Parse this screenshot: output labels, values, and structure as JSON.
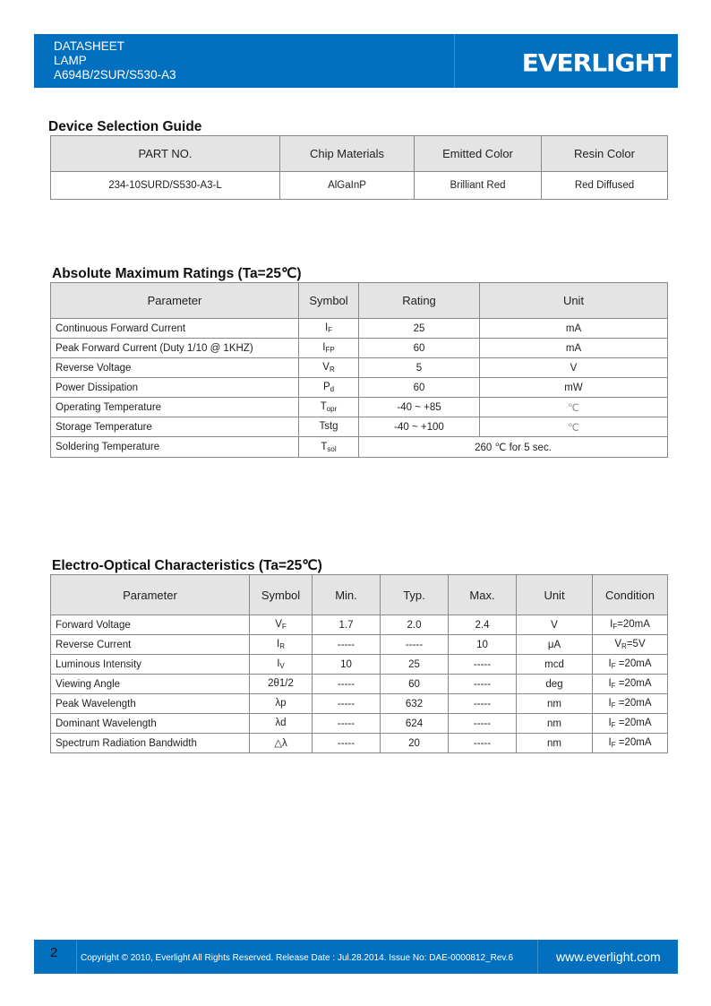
{
  "header": {
    "line1": "DATASHEET",
    "line2": "LAMP",
    "line3": "A694B/2SUR/S530-A3",
    "logo": "EVERLIGHT"
  },
  "selection": {
    "title": "Device Selection Guide",
    "headers": [
      "PART NO.",
      "Chip Materials",
      "Emitted Color",
      "Resin Color"
    ],
    "rows": [
      [
        "234-10SURD/S530-A3-L",
        "AlGaInP",
        "Brilliant Red",
        "Red Diffused"
      ]
    ]
  },
  "ratings": {
    "title": "Absolute Maximum Ratings (Ta=25℃)",
    "headers": [
      "Parameter",
      "Symbol",
      "Rating",
      "Unit"
    ],
    "rows": [
      {
        "param": "Continuous Forward Current",
        "sym": "I",
        "sub": "F",
        "rating": "25",
        "unit": "mA"
      },
      {
        "param": "Peak Forward Current (Duty 1/10 @ 1KHZ)",
        "sym": "I",
        "sub": "FP",
        "rating": "60",
        "unit": "mA"
      },
      {
        "param": "Reverse Voltage",
        "sym": "V",
        "sub": "R",
        "rating": "5",
        "unit": "V"
      },
      {
        "param": "Power Dissipation",
        "sym": "P",
        "sub": "d",
        "rating": "60",
        "unit": "mW"
      },
      {
        "param": "Operating Temperature",
        "sym": "T",
        "sub": "opr",
        "rating": "-40 ~ +85",
        "unit": "℃"
      },
      {
        "param": "Storage Temperature",
        "sym": "Tstg",
        "sub": "",
        "rating": "-40 ~ +100",
        "unit": "℃"
      }
    ],
    "solder": {
      "param": "Soldering Temperature",
      "sym": "T",
      "sub": "sol",
      "rating": "260 ℃  for 5 sec."
    }
  },
  "eo": {
    "title": "Electro-Optical Characteristics (Ta=25℃)",
    "headers": [
      "Parameter",
      "Symbol",
      "Min.",
      "Typ.",
      "Max.",
      "Unit",
      "Condition"
    ],
    "rows": [
      {
        "param": "Forward Voltage",
        "sym": "V",
        "sub": "F",
        "min": "1.7",
        "typ": "2.0",
        "max": "2.4",
        "unit": "V",
        "cb": "I",
        "cs": "F",
        "ce": "=20mA"
      },
      {
        "param": "Reverse Current",
        "sym": "I",
        "sub": "R",
        "min": "-----",
        "typ": "-----",
        "max": "10",
        "unit": "μA",
        "cb": "V",
        "cs": "R",
        "ce": "=5V"
      },
      {
        "param": "Luminous Intensity",
        "sym": "I",
        "sub": "V",
        "min": "10",
        "typ": "25",
        "max": "-----",
        "unit": "mcd",
        "cb": "I",
        "cs": "F",
        "ce": " =20mA"
      },
      {
        "param": "Viewing Angle",
        "sym": "2θ1/2",
        "sub": "",
        "min": "-----",
        "typ": "60",
        "max": "-----",
        "unit": "deg",
        "cb": "I",
        "cs": "F",
        "ce": " =20mA"
      },
      {
        "param": "Peak Wavelength",
        "sym": "λp",
        "sub": "",
        "min": "-----",
        "typ": "632",
        "max": "-----",
        "unit": "nm",
        "cb": "I",
        "cs": "F",
        "ce": " =20mA"
      },
      {
        "param": "Dominant Wavelength",
        "sym": "λd",
        "sub": "",
        "min": "-----",
        "typ": "624",
        "max": "-----",
        "unit": "nm",
        "cb": "I",
        "cs": "F",
        "ce": " =20mA"
      },
      {
        "param": "Spectrum Radiation Bandwidth",
        "sym": "△λ",
        "sub": "",
        "min": "-----",
        "typ": "20",
        "max": "-----",
        "unit": "nm",
        "cb": "I",
        "cs": "F",
        "ce": " =20mA"
      }
    ]
  },
  "footer": {
    "page": "2",
    "copyright": "Copyright © 2010, Everlight All Rights Reserved. Release Date : Jul.28.2014. Issue No: DAE-0000812_Rev.6",
    "url": "www.everlight.com"
  },
  "colors": {
    "brand": "#0270bf",
    "header_cell": "#e4e4e4"
  }
}
